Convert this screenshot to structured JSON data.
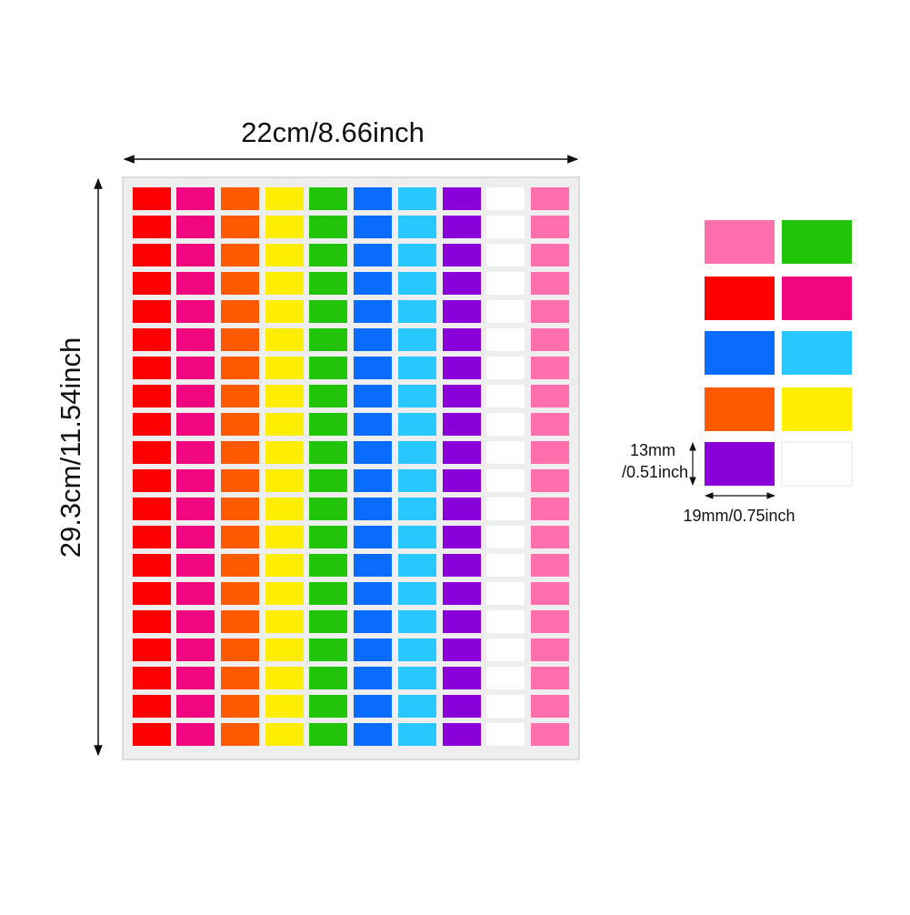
{
  "sheet_width_label": "22cm/8.66inch",
  "sheet_height_label": "29.3cm/11.54inch",
  "sticker_height_label": [
    "13mm",
    "/0.51inch"
  ],
  "sticker_width_label": "19mm/0.75inch"
}
